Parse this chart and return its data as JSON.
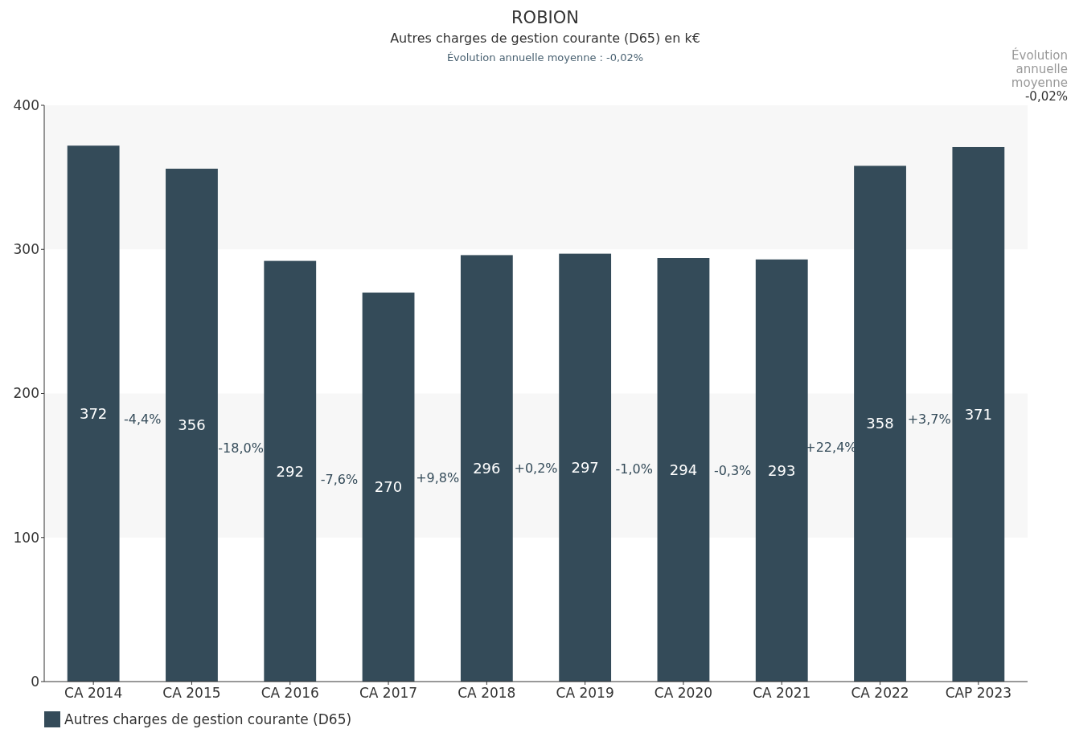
{
  "chart_data": {
    "type": "bar",
    "title": "ROBION",
    "subtitle": "Autres charges de gestion courante (D65) en k€",
    "categories": [
      "CA 2014",
      "CA 2015",
      "CA 2016",
      "CA 2017",
      "CA 2018",
      "CA 2019",
      "CA 2020",
      "CA 2021",
      "CA 2022",
      "CAP 2023"
    ],
    "series": [
      {
        "name": "Autres charges de gestion courante (D65)",
        "color": "#344b59",
        "values": [
          372,
          356,
          292,
          270,
          296,
          297,
          294,
          293,
          358,
          371
        ]
      }
    ],
    "ylim": [
      0,
      400
    ],
    "yticks": [
      0,
      100,
      200,
      300,
      400
    ],
    "grid": false,
    "bands": [
      {
        "axis": "y",
        "from": 100,
        "to": 200,
        "color": "#f7f7f7"
      },
      {
        "axis": "y",
        "from": 300,
        "to": 400,
        "color": "#f7f7f7"
      }
    ],
    "data_labels": true,
    "legend": "bottom left",
    "annotations": [
      "Évolution annuelle moyenne : -0,02%",
      "Évolution\nannuelle\nmoyenne\n-0,02%",
      "-4,4%",
      "-18,0%",
      "-7,6%",
      "+9,8%",
      "+0,2%",
      "-1,0%",
      "-0,3%",
      "+22,4%",
      "+3,7%"
    ]
  }
}
